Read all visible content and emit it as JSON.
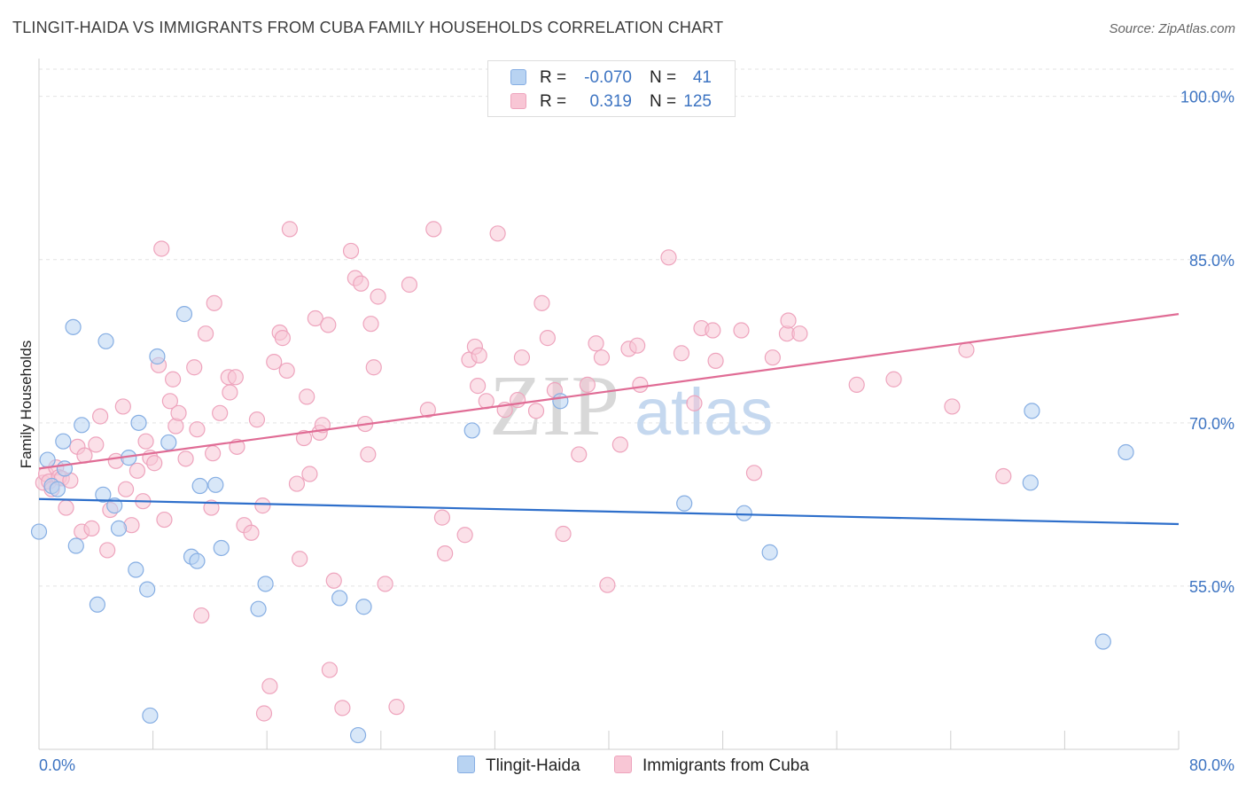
{
  "title": "TLINGIT-HAIDA VS IMMIGRANTS FROM CUBA FAMILY HOUSEHOLDS CORRELATION CHART",
  "source": "Source: ZipAtlas.com",
  "watermark": {
    "zip": "ZIP",
    "atlas": "atlas"
  },
  "colors": {
    "blue_fill": "#b8d3f2",
    "blue_stroke": "#86aee3",
    "blue_line": "#2e6fcb",
    "pink_fill": "#f8c6d5",
    "pink_stroke": "#eea4bd",
    "pink_line": "#e06c95",
    "accent_text": "#3d74c2"
  },
  "legend": {
    "series": [
      {
        "name": "Tlingit-Haida",
        "r_label": "R =",
        "r_value": "-0.070",
        "n_label": "N =",
        "n_value": "41"
      },
      {
        "name": "Immigrants from Cuba",
        "r_label": "R =",
        "r_value": "0.319",
        "n_label": "N =",
        "n_value": "125"
      }
    ]
  },
  "chart_data": {
    "type": "scatter",
    "title": "TLINGIT-HAIDA VS IMMIGRANTS FROM CUBA FAMILY HOUSEHOLDS CORRELATION CHART",
    "xlabel": "",
    "ylabel": "Family Households",
    "xlim": [
      0,
      80
    ],
    "ylim": [
      40,
      102.5
    ],
    "x_tick_labels": [
      "0.0%",
      "80.0%"
    ],
    "y_ticks": [
      55,
      70,
      85,
      100
    ],
    "y_tick_labels": [
      "55.0%",
      "70.0%",
      "85.0%",
      "100.0%"
    ],
    "grid": true,
    "series": [
      {
        "name": "Tlingit-Haida",
        "r": -0.07,
        "n": 41,
        "trend": {
          "x": [
            0,
            80
          ],
          "y": [
            63.0,
            60.7
          ]
        },
        "points": [
          [
            0.0,
            60.0
          ],
          [
            0.6,
            66.6
          ],
          [
            0.9,
            64.2
          ],
          [
            1.3,
            63.9
          ],
          [
            1.7,
            68.3
          ],
          [
            1.8,
            65.8
          ],
          [
            2.4,
            78.8
          ],
          [
            2.6,
            58.7
          ],
          [
            3.0,
            69.8
          ],
          [
            4.1,
            53.3
          ],
          [
            4.5,
            63.4
          ],
          [
            4.7,
            77.5
          ],
          [
            5.3,
            62.4
          ],
          [
            5.6,
            60.3
          ],
          [
            6.3,
            66.8
          ],
          [
            6.8,
            56.5
          ],
          [
            7.0,
            70.0
          ],
          [
            7.6,
            54.7
          ],
          [
            7.8,
            43.1
          ],
          [
            8.3,
            76.1
          ],
          [
            9.1,
            68.2
          ],
          [
            10.2,
            80.0
          ],
          [
            10.7,
            57.7
          ],
          [
            11.1,
            57.3
          ],
          [
            11.3,
            64.2
          ],
          [
            12.4,
            64.3
          ],
          [
            12.8,
            58.5
          ],
          [
            15.4,
            52.9
          ],
          [
            15.9,
            55.2
          ],
          [
            21.1,
            53.9
          ],
          [
            22.4,
            41.3
          ],
          [
            22.8,
            53.1
          ],
          [
            30.4,
            69.3
          ],
          [
            36.6,
            72.0
          ],
          [
            45.3,
            62.6
          ],
          [
            49.5,
            61.7
          ],
          [
            51.3,
            58.1
          ],
          [
            69.6,
            64.5
          ],
          [
            69.7,
            71.1
          ],
          [
            74.7,
            49.9
          ],
          [
            76.3,
            67.3
          ]
        ]
      },
      {
        "name": "Immigrants from Cuba",
        "r": 0.319,
        "n": 125,
        "trend": {
          "x": [
            0,
            80
          ],
          "y": [
            65.8,
            80.0
          ]
        },
        "points": [
          [
            0.3,
            64.5
          ],
          [
            0.5,
            65.3
          ],
          [
            0.7,
            64.6
          ],
          [
            0.9,
            63.9
          ],
          [
            1.2,
            65.9
          ],
          [
            1.4,
            65.0
          ],
          [
            1.6,
            64.9
          ],
          [
            1.9,
            62.2
          ],
          [
            2.2,
            64.7
          ],
          [
            2.7,
            67.8
          ],
          [
            3.0,
            60.0
          ],
          [
            3.2,
            67.0
          ],
          [
            3.7,
            60.3
          ],
          [
            4.0,
            68.0
          ],
          [
            4.3,
            70.6
          ],
          [
            4.8,
            58.3
          ],
          [
            5.0,
            62.0
          ],
          [
            5.4,
            66.5
          ],
          [
            5.9,
            71.5
          ],
          [
            6.1,
            63.9
          ],
          [
            6.5,
            60.6
          ],
          [
            6.9,
            65.6
          ],
          [
            7.3,
            62.8
          ],
          [
            7.5,
            68.3
          ],
          [
            7.8,
            66.8
          ],
          [
            8.1,
            66.3
          ],
          [
            8.4,
            75.3
          ],
          [
            8.6,
            86.0
          ],
          [
            8.8,
            61.1
          ],
          [
            9.2,
            72.0
          ],
          [
            9.4,
            74.0
          ],
          [
            9.6,
            69.7
          ],
          [
            9.8,
            70.9
          ],
          [
            10.3,
            66.7
          ],
          [
            10.9,
            75.1
          ],
          [
            11.1,
            69.4
          ],
          [
            11.4,
            52.3
          ],
          [
            11.7,
            78.2
          ],
          [
            12.1,
            62.2
          ],
          [
            12.2,
            67.2
          ],
          [
            12.3,
            81.0
          ],
          [
            12.7,
            70.9
          ],
          [
            13.3,
            74.2
          ],
          [
            13.4,
            72.8
          ],
          [
            13.8,
            74.2
          ],
          [
            13.9,
            67.8
          ],
          [
            14.4,
            60.6
          ],
          [
            14.9,
            59.9
          ],
          [
            15.3,
            70.3
          ],
          [
            15.7,
            62.4
          ],
          [
            15.8,
            43.3
          ],
          [
            16.2,
            45.8
          ],
          [
            16.5,
            75.6
          ],
          [
            16.9,
            78.3
          ],
          [
            17.1,
            77.8
          ],
          [
            17.4,
            74.8
          ],
          [
            17.6,
            87.8
          ],
          [
            18.1,
            64.4
          ],
          [
            18.3,
            57.5
          ],
          [
            18.6,
            68.6
          ],
          [
            18.8,
            72.4
          ],
          [
            19.0,
            65.3
          ],
          [
            19.4,
            79.6
          ],
          [
            19.7,
            69.1
          ],
          [
            19.9,
            69.8
          ],
          [
            20.3,
            79.0
          ],
          [
            20.4,
            47.3
          ],
          [
            20.7,
            55.5
          ],
          [
            21.3,
            43.8
          ],
          [
            21.9,
            85.8
          ],
          [
            22.2,
            83.3
          ],
          [
            22.6,
            82.8
          ],
          [
            22.9,
            69.9
          ],
          [
            23.1,
            67.1
          ],
          [
            23.3,
            79.1
          ],
          [
            23.5,
            75.1
          ],
          [
            23.8,
            81.6
          ],
          [
            24.3,
            55.2
          ],
          [
            25.1,
            43.9
          ],
          [
            26.0,
            82.7
          ],
          [
            27.3,
            71.2
          ],
          [
            27.7,
            87.8
          ],
          [
            28.3,
            61.3
          ],
          [
            28.5,
            58.0
          ],
          [
            29.9,
            59.7
          ],
          [
            30.2,
            75.8
          ],
          [
            30.6,
            77.0
          ],
          [
            30.8,
            73.4
          ],
          [
            30.9,
            76.2
          ],
          [
            31.4,
            72.0
          ],
          [
            32.2,
            87.4
          ],
          [
            32.7,
            71.2
          ],
          [
            33.6,
            72.1
          ],
          [
            33.9,
            76.0
          ],
          [
            34.9,
            71.1
          ],
          [
            35.3,
            81.0
          ],
          [
            35.7,
            77.8
          ],
          [
            36.2,
            73.0
          ],
          [
            36.8,
            59.8
          ],
          [
            37.9,
            67.1
          ],
          [
            38.5,
            73.5
          ],
          [
            39.1,
            77.3
          ],
          [
            39.5,
            76.0
          ],
          [
            39.9,
            55.1
          ],
          [
            40.8,
            68.0
          ],
          [
            41.4,
            76.8
          ],
          [
            42.0,
            77.1
          ],
          [
            42.2,
            73.5
          ],
          [
            44.2,
            85.2
          ],
          [
            45.1,
            76.4
          ],
          [
            46.0,
            71.8
          ],
          [
            46.5,
            78.7
          ],
          [
            47.3,
            78.5
          ],
          [
            47.5,
            75.7
          ],
          [
            49.3,
            78.5
          ],
          [
            50.2,
            65.4
          ],
          [
            51.5,
            76.0
          ],
          [
            52.5,
            78.2
          ],
          [
            52.6,
            79.4
          ],
          [
            53.4,
            78.2
          ],
          [
            57.4,
            73.5
          ],
          [
            60.0,
            74.0
          ],
          [
            64.1,
            71.5
          ],
          [
            65.1,
            76.7
          ],
          [
            67.7,
            65.1
          ]
        ]
      }
    ]
  }
}
